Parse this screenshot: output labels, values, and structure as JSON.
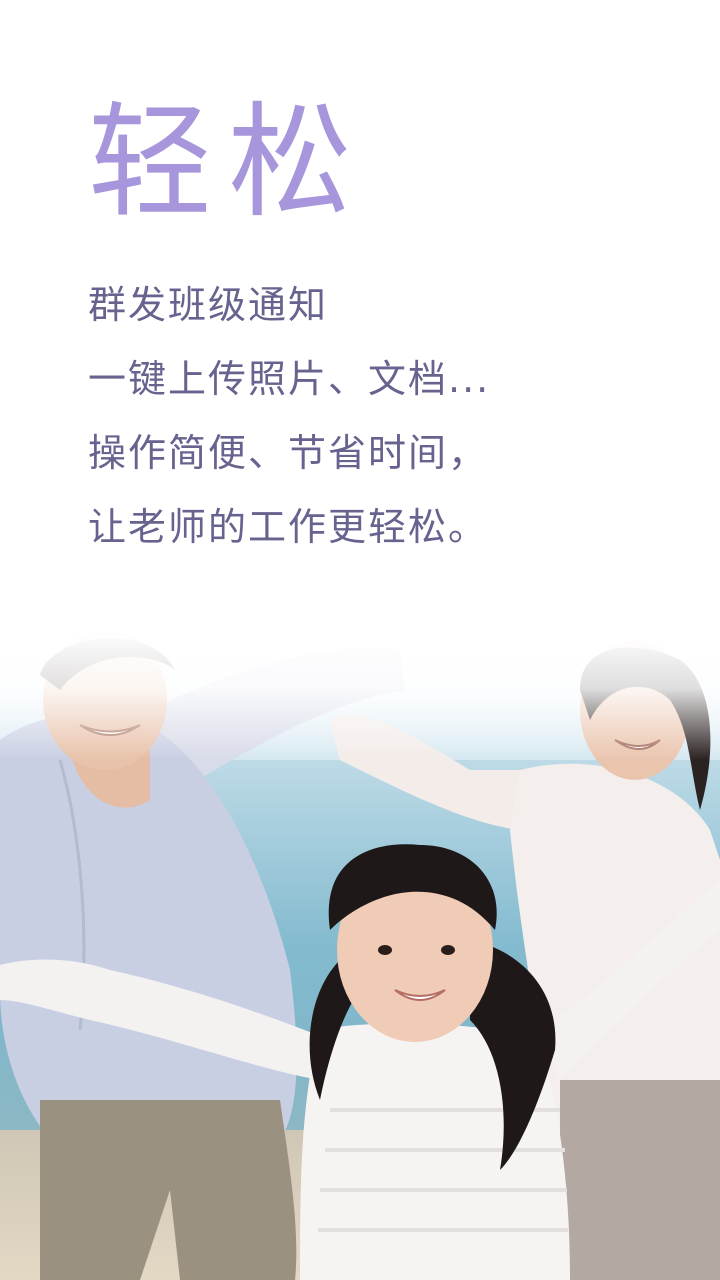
{
  "headline": "轻松",
  "description_lines": [
    "群发班级通知",
    "一键上传照片、文档...",
    "操作简便、节省时间，",
    "让老师的工作更轻松。"
  ],
  "colors": {
    "headline": "#a896dc",
    "body_text": "#67638f",
    "background": "#ffffff"
  },
  "photo": {
    "scene": "family-on-beach"
  }
}
